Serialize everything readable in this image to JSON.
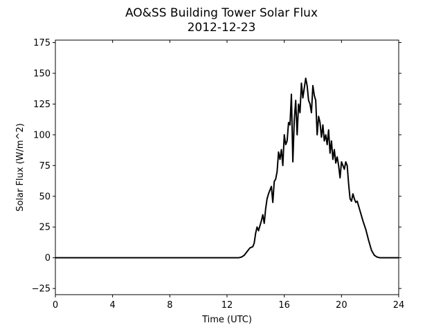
{
  "chart_data": {
    "type": "line",
    "title": "AO&SS Building Tower Solar Flux",
    "subtitle": "2012-12-23",
    "xlabel": "Time (UTC)",
    "ylabel": "Solar Flux (W/m^2)",
    "xlim": [
      0,
      24
    ],
    "ylim": [
      -30,
      177
    ],
    "xticks": [
      0,
      4,
      8,
      12,
      16,
      20,
      24
    ],
    "xtick_labels": [
      "0",
      "4",
      "8",
      "12",
      "16",
      "20",
      "24"
    ],
    "yticks": [
      -25,
      0,
      25,
      50,
      75,
      100,
      125,
      150,
      175
    ],
    "ytick_labels": [
      "−25",
      "0",
      "25",
      "50",
      "75",
      "100",
      "125",
      "150",
      "175"
    ],
    "grid": false,
    "line_color": "#000000",
    "series": [
      {
        "x": [
          0,
          1,
          2,
          4,
          6,
          8,
          10,
          12,
          12.8,
          13.0,
          13.2,
          13.4,
          13.6,
          13.8,
          13.9,
          14.0,
          14.1,
          14.2,
          14.3,
          14.4,
          14.5,
          14.6,
          14.7,
          14.8,
          14.9,
          15.0,
          15.1,
          15.2,
          15.3,
          15.4,
          15.5,
          15.6,
          15.7,
          15.8,
          15.9,
          16.0,
          16.1,
          16.2,
          16.3,
          16.4,
          16.5,
          16.6,
          16.7,
          16.8,
          16.9,
          17.0,
          17.1,
          17.2,
          17.3,
          17.4,
          17.5,
          17.6,
          17.7,
          17.8,
          17.9,
          18.0,
          18.1,
          18.2,
          18.3,
          18.4,
          18.5,
          18.6,
          18.7,
          18.8,
          18.9,
          19.0,
          19.1,
          19.2,
          19.3,
          19.4,
          19.5,
          19.6,
          19.7,
          19.8,
          19.9,
          20.0,
          20.1,
          20.2,
          20.3,
          20.4,
          20.5,
          20.6,
          20.7,
          20.8,
          20.9,
          21.0,
          21.1,
          21.2,
          21.3,
          21.5,
          21.7,
          21.9,
          22.1,
          22.3,
          22.5,
          22.7,
          22.9,
          23.1,
          23.3,
          24.0
        ],
        "y": [
          0,
          0,
          0,
          0,
          0,
          0,
          0,
          0,
          0,
          0.5,
          2,
          5,
          8,
          9,
          12,
          20,
          25,
          22,
          26,
          30,
          35,
          28,
          40,
          48,
          52,
          55,
          58,
          45,
          62,
          64,
          70,
          86,
          80,
          88,
          75,
          100,
          92,
          95,
          110,
          108,
          133,
          78,
          112,
          128,
          100,
          125,
          118,
          142,
          130,
          138,
          146,
          140,
          128,
          125,
          118,
          140,
          132,
          128,
          100,
          115,
          110,
          98,
          108,
          95,
          100,
          92,
          104,
          85,
          95,
          80,
          88,
          77,
          82,
          75,
          65,
          78,
          75,
          72,
          78,
          75,
          60,
          48,
          46,
          52,
          48,
          45,
          46,
          42,
          38,
          30,
          23,
          14,
          6,
          2,
          0.5,
          0,
          0,
          0,
          0,
          0
        ]
      }
    ]
  }
}
